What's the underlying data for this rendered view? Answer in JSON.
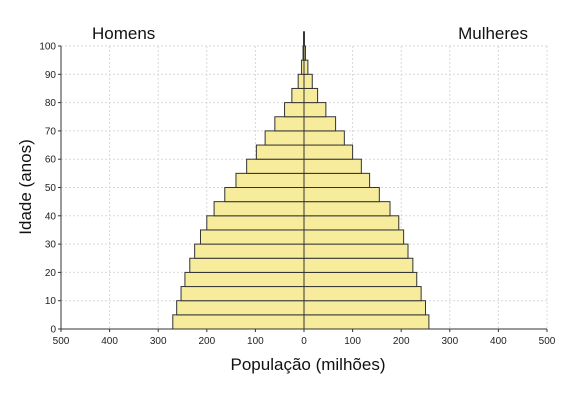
{
  "chart_data": {
    "type": "bar",
    "orientation": "horizontal-pyramid",
    "left_label": "Homens",
    "right_label": "Mulheres",
    "xlabel": "População (milhões)",
    "ylabel": "Idade (anos)",
    "xlim": [
      -500,
      500
    ],
    "ylim": [
      0,
      100
    ],
    "grid": true,
    "x_ticks": [
      "500",
      "400",
      "300",
      "200",
      "100",
      "0",
      "100",
      "200",
      "300",
      "400",
      "500"
    ],
    "y_ticks": [
      "0",
      "10",
      "20",
      "30",
      "40",
      "50",
      "60",
      "70",
      "80",
      "90",
      "100"
    ],
    "age_groups": [
      0,
      5,
      10,
      15,
      20,
      25,
      30,
      35,
      40,
      45,
      50,
      55,
      60,
      65,
      70,
      75,
      80,
      85,
      90,
      95,
      100
    ],
    "series": [
      {
        "name": "Homens",
        "values": [
          270,
          262,
          253,
          245,
          235,
          225,
          213,
          200,
          185,
          163,
          140,
          118,
          98,
          80,
          60,
          40,
          25,
          12,
          5,
          2,
          1
        ]
      },
      {
        "name": "Mulheres",
        "values": [
          257,
          250,
          241,
          232,
          224,
          214,
          205,
          195,
          177,
          155,
          135,
          118,
          100,
          83,
          65,
          45,
          28,
          17,
          8,
          3,
          1
        ]
      }
    ],
    "colors": {
      "bar_fill": "#f7ec9c",
      "bar_stroke": "#333333"
    }
  }
}
